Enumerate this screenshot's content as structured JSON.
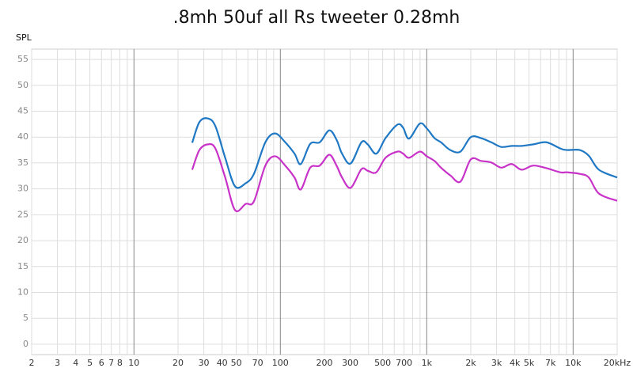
{
  "chart_data": {
    "type": "line",
    "title": ".8mh 50uf all Rs tweeter 0.28mh",
    "y_label": "SPL",
    "log_x": true,
    "grid": true,
    "xlim": [
      2,
      20000
    ],
    "ylim": [
      -2,
      57
    ],
    "xticks": [
      2,
      3,
      4,
      5,
      6,
      7,
      8,
      10,
      20,
      30,
      40,
      50,
      70,
      100,
      200,
      300,
      500,
      700,
      {
        "value": 1000,
        "label": "1k"
      },
      {
        "value": 2000,
        "label": "2k"
      },
      {
        "value": 3000,
        "label": "3k"
      },
      {
        "value": 4000,
        "label": "4k"
      },
      {
        "value": 5000,
        "label": "5k"
      },
      {
        "value": 7000,
        "label": "7k"
      },
      {
        "value": 10000,
        "label": "10k"
      },
      {
        "value": 20000,
        "label": "20kHz"
      }
    ],
    "x_minor_grid": [
      9,
      60,
      80,
      90,
      400,
      600,
      800,
      900,
      6000,
      8000,
      9000
    ],
    "yticks": [
      0,
      5,
      10,
      15,
      20,
      25,
      30,
      35,
      40,
      45,
      50,
      55
    ],
    "x": [
      25,
      28,
      32,
      36,
      42,
      49,
      58,
      66,
      79,
      92,
      108,
      125,
      138,
      160,
      186,
      216,
      242,
      264,
      302,
      358,
      395,
      452,
      523,
      630,
      690,
      757,
      896,
      1000,
      1130,
      1250,
      1450,
      1700,
      2000,
      2350,
      2760,
      3230,
      3800,
      4450,
      5340,
      6570,
      8180,
      9100,
      11100,
      12800,
      15000,
      20000
    ],
    "series": [
      {
        "color": "#1f78c4",
        "values": [
          38.9,
          42.9,
          43.6,
          42.1,
          36,
          30.5,
          31.1,
          32.9,
          39,
          40.7,
          39,
          36.8,
          34.8,
          38.7,
          39,
          41.3,
          39.5,
          36.8,
          34.9,
          39,
          38.6,
          36.8,
          39.8,
          42.4,
          41.8,
          39.7,
          42.6,
          41.7,
          39.8,
          39,
          37.5,
          37.2,
          40,
          39.8,
          39,
          38.1,
          38.3,
          38.3,
          38.6,
          39,
          37.8,
          37.5,
          37.5,
          36.4,
          33.7,
          32.2
        ]
      },
      {
        "color": "#c832c8",
        "values": [
          33.7,
          37.5,
          38.6,
          37.8,
          32.2,
          25.9,
          27.1,
          27.6,
          34.5,
          36.3,
          34.5,
          32.2,
          29.9,
          34.1,
          34.5,
          36.6,
          34.5,
          32.2,
          30.2,
          33.8,
          33.5,
          33.2,
          36,
          37.2,
          36.8,
          36,
          37.2,
          36.3,
          35.4,
          34.1,
          32.6,
          31.4,
          35.7,
          35.4,
          35.1,
          34.1,
          34.8,
          33.7,
          34.5,
          34,
          33.2,
          33.2,
          32.9,
          32.2,
          29.1,
          27.7
        ]
      }
    ]
  }
}
